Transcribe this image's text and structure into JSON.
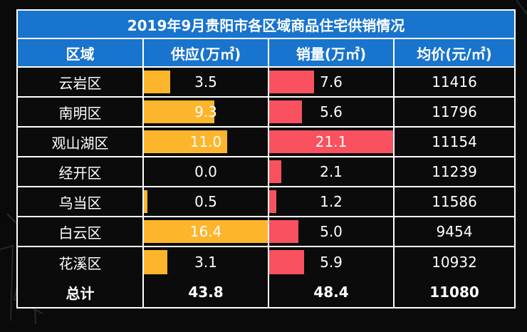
{
  "colors": {
    "header_bg": "#1874cd",
    "supply_bar": "#fdb52c",
    "sales_bar": "#f9515f",
    "background": "#0a0a0a",
    "text": "#ffffff"
  },
  "chart_data": {
    "type": "table",
    "title": "2019年9月贵阳市各区域商品住宅供销情况",
    "columns": [
      "区域",
      "供应(万㎡)",
      "销量(万㎡)",
      "均价(元/㎡)"
    ],
    "rows": [
      {
        "district": "云岩区",
        "supply": "3.5",
        "sales": "7.6",
        "price": "11416"
      },
      {
        "district": "南明区",
        "supply": "9.3",
        "sales": "5.6",
        "price": "11796"
      },
      {
        "district": "观山湖区",
        "supply": "11.0",
        "sales": "21.1",
        "price": "11154"
      },
      {
        "district": "经开区",
        "supply": "0.0",
        "sales": "2.1",
        "price": "11239"
      },
      {
        "district": "乌当区",
        "supply": "0.5",
        "sales": "1.2",
        "price": "11586"
      },
      {
        "district": "白云区",
        "supply": "16.4",
        "sales": "5.0",
        "price": "9454"
      },
      {
        "district": "花溪区",
        "supply": "3.1",
        "sales": "5.9",
        "price": "10932"
      }
    ],
    "total": {
      "label": "总计",
      "supply": "43.8",
      "sales": "48.4",
      "price": "11080"
    },
    "supply_max": 16.4,
    "sales_max": 21.1
  }
}
